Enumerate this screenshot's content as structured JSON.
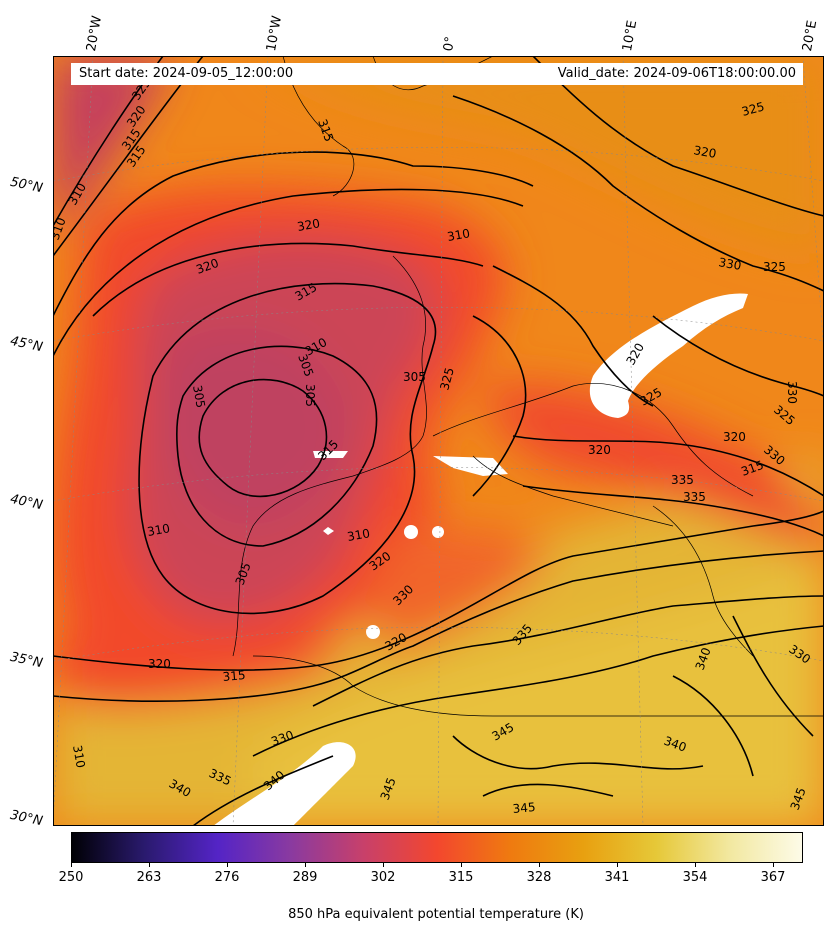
{
  "header": {
    "start_date": "Start date: 2024-09-05_12:00:00",
    "valid_date": "Valid_date: 2024-09-06T18:00:00.00"
  },
  "longitude_labels": [
    "20°W",
    "10°W",
    "0°",
    "10°E",
    "20°E"
  ],
  "latitude_labels": [
    "50°N",
    "45°N",
    "40°N",
    "35°N",
    "30°N"
  ],
  "contour_labels": [
    "325",
    "320",
    "315",
    "315",
    "310",
    "310",
    "320",
    "320",
    "315",
    "310",
    "305",
    "305",
    "305",
    "305",
    "310",
    "310",
    "315",
    "310",
    "320",
    "325",
    "330",
    "325",
    "320",
    "325",
    "330",
    "320",
    "325",
    "335",
    "335",
    "330",
    "320",
    "315",
    "320",
    "325",
    "330",
    "340",
    "335",
    "320",
    "315",
    "330",
    "340",
    "335",
    "340",
    "345",
    "345",
    "345",
    "340",
    "345",
    "310",
    "315",
    "320",
    "305",
    "330"
  ],
  "colorbar": {
    "ticks": [
      "250",
      "263",
      "276",
      "289",
      "302",
      "315",
      "328",
      "341",
      "354",
      "367"
    ],
    "label": "850 hPa equivalent potential temperature (K)",
    "min": 250,
    "max": 372,
    "colormap": [
      "#000004",
      "#2a1a6e",
      "#5424c6",
      "#8a3aa0",
      "#c8406a",
      "#f3472e",
      "#ef7a10",
      "#e8a010",
      "#e6c838",
      "#f2e8a0",
      "#fdfbe8"
    ]
  }
}
